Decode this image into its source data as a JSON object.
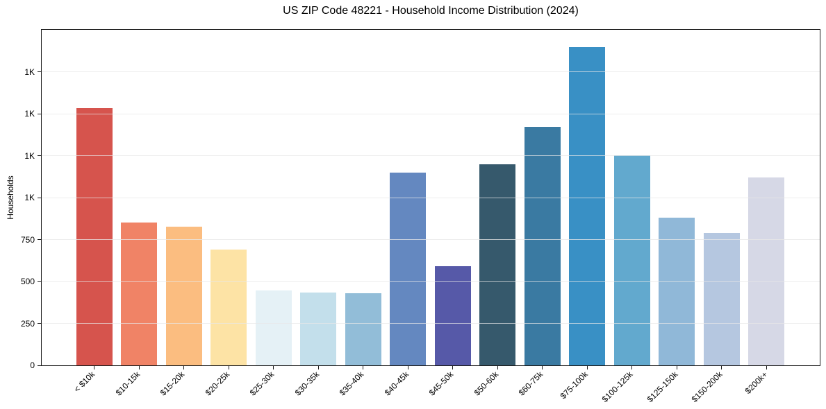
{
  "chart_data": {
    "type": "bar",
    "title": "US ZIP Code 48221 - Household Income Distribution (2024)",
    "xlabel": "",
    "ylabel": "Households",
    "ylim": [
      0,
      2000
    ],
    "grid": true,
    "legend_position": "none",
    "categories": [
      "< $10k",
      "$10-15k",
      "$15-20k",
      "$20-25k",
      "$25-30k",
      "$30-35k",
      "$35-40k",
      "$40-45k",
      "$45-50k",
      "$50-60k",
      "$60-75k",
      "$75-100k",
      "$100-125k",
      "$125-150k",
      "$150-200k",
      "$200k+"
    ],
    "values": [
      1535,
      851,
      827,
      692,
      445,
      434,
      428,
      1147,
      591,
      1200,
      1421,
      1897,
      1251,
      879,
      789,
      1119
    ],
    "bar_colors": [
      "#d6544d",
      "#f08366",
      "#fbbd80",
      "#fde3a5",
      "#e5f1f6",
      "#c3dfeb",
      "#92bdd8",
      "#6488c0",
      "#5659a8",
      "#36596c",
      "#3a7aa2",
      "#3990c5",
      "#62a9ce",
      "#90b8d8",
      "#b5c7e0",
      "#d6d8e6"
    ],
    "yticks": [
      {
        "value": 0,
        "label": "0"
      },
      {
        "value": 250,
        "label": "250"
      },
      {
        "value": 500,
        "label": "500"
      },
      {
        "value": 750,
        "label": "750"
      },
      {
        "value": 1000,
        "label": "1K"
      },
      {
        "value": 1250,
        "label": "1K"
      },
      {
        "value": 1500,
        "label": "1K"
      },
      {
        "value": 1750,
        "label": "1K"
      }
    ]
  }
}
